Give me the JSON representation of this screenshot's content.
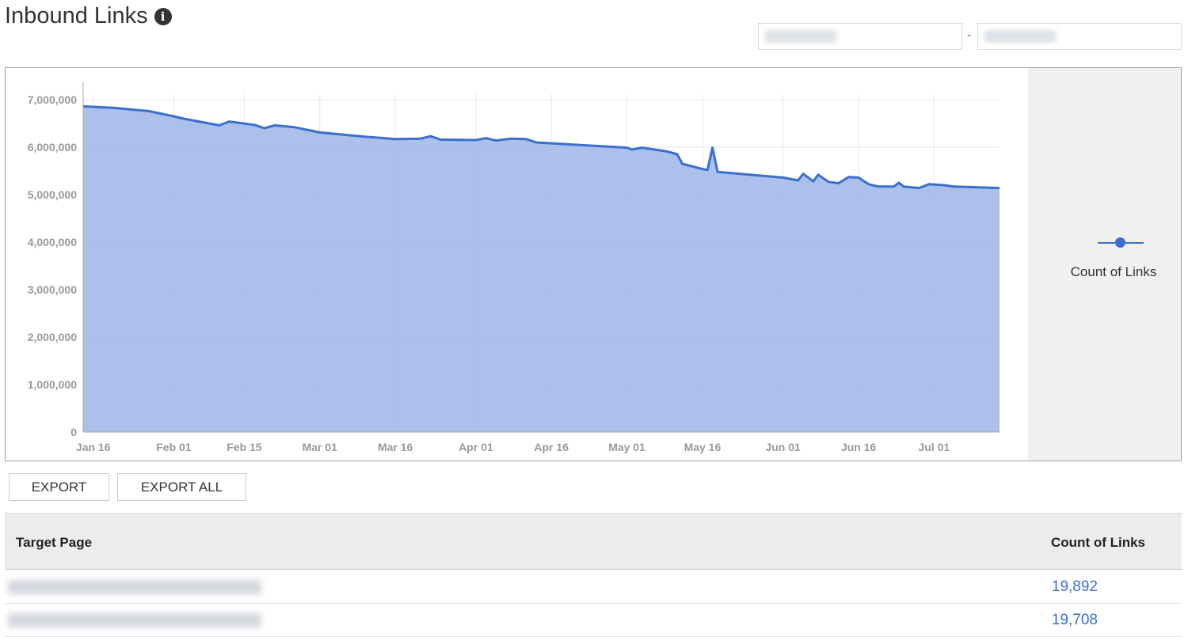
{
  "header": {
    "title": "Inbound Links",
    "info_icon": "info-circle-icon"
  },
  "date_range": {
    "separator": "-"
  },
  "chart_data": {
    "type": "area",
    "ylim": [
      0,
      7000000
    ],
    "yticks": [
      "0",
      "1,000,000",
      "2,000,000",
      "3,000,000",
      "4,000,000",
      "5,000,000",
      "6,000,000",
      "7,000,000"
    ],
    "xticks": [
      {
        "date": "2000-01-16",
        "label": "Jan 16"
      },
      {
        "date": "2000-02-01",
        "label": "Feb 01"
      },
      {
        "date": "2000-02-15",
        "label": "Feb 15"
      },
      {
        "date": "2000-03-01",
        "label": "Mar 01"
      },
      {
        "date": "2000-03-16",
        "label": "Mar 16"
      },
      {
        "date": "2000-04-01",
        "label": "Apr 01"
      },
      {
        "date": "2000-04-16",
        "label": "Apr 16"
      },
      {
        "date": "2000-05-01",
        "label": "May 01"
      },
      {
        "date": "2000-05-16",
        "label": "May 16"
      },
      {
        "date": "2000-06-01",
        "label": "Jun 01"
      },
      {
        "date": "2000-06-16",
        "label": "Jun 16"
      },
      {
        "date": "2000-07-01",
        "label": "Jul 01"
      }
    ],
    "xrange": [
      "2000-01-14",
      "2000-07-14"
    ],
    "grid": true,
    "legend_placement": "right",
    "series": [
      {
        "name": "Count of Links",
        "color": "#3a6fd0",
        "fill": "#a6bde9",
        "points": [
          [
            "2000-01-14",
            6860000
          ],
          [
            "2000-01-20",
            6830000
          ],
          [
            "2000-01-27",
            6760000
          ],
          [
            "2000-02-01",
            6650000
          ],
          [
            "2000-02-03",
            6600000
          ],
          [
            "2000-02-08",
            6500000
          ],
          [
            "2000-02-10",
            6460000
          ],
          [
            "2000-02-12",
            6540000
          ],
          [
            "2000-02-17",
            6470000
          ],
          [
            "2000-02-19",
            6400000
          ],
          [
            "2000-02-21",
            6460000
          ],
          [
            "2000-02-25",
            6420000
          ],
          [
            "2000-03-01",
            6310000
          ],
          [
            "2000-03-10",
            6220000
          ],
          [
            "2000-03-16",
            6170000
          ],
          [
            "2000-03-21",
            6180000
          ],
          [
            "2000-03-23",
            6230000
          ],
          [
            "2000-03-25",
            6160000
          ],
          [
            "2000-04-01",
            6150000
          ],
          [
            "2000-04-03",
            6190000
          ],
          [
            "2000-04-05",
            6140000
          ],
          [
            "2000-04-08",
            6180000
          ],
          [
            "2000-04-11",
            6170000
          ],
          [
            "2000-04-13",
            6100000
          ],
          [
            "2000-05-01",
            5990000
          ],
          [
            "2000-05-02",
            5950000
          ],
          [
            "2000-05-04",
            5990000
          ],
          [
            "2000-05-09",
            5910000
          ],
          [
            "2000-05-11",
            5850000
          ],
          [
            "2000-05-12",
            5650000
          ],
          [
            "2000-05-16",
            5540000
          ],
          [
            "2000-05-17",
            5520000
          ],
          [
            "2000-05-18",
            5990000
          ],
          [
            "2000-05-19",
            5480000
          ],
          [
            "2000-06-01",
            5360000
          ],
          [
            "2000-06-04",
            5300000
          ],
          [
            "2000-06-05",
            5440000
          ],
          [
            "2000-06-07",
            5280000
          ],
          [
            "2000-06-08",
            5420000
          ],
          [
            "2000-06-10",
            5270000
          ],
          [
            "2000-06-12",
            5240000
          ],
          [
            "2000-06-14",
            5370000
          ],
          [
            "2000-06-16",
            5360000
          ],
          [
            "2000-06-18",
            5220000
          ],
          [
            "2000-06-20",
            5170000
          ],
          [
            "2000-06-23",
            5170000
          ],
          [
            "2000-06-24",
            5250000
          ],
          [
            "2000-06-25",
            5170000
          ],
          [
            "2000-06-28",
            5140000
          ],
          [
            "2000-06-30",
            5220000
          ],
          [
            "2000-07-03",
            5200000
          ],
          [
            "2000-07-05",
            5170000
          ],
          [
            "2000-07-14",
            5140000
          ]
        ]
      }
    ]
  },
  "legend": {
    "label": "Count of Links"
  },
  "toolbar": {
    "export": "EXPORT",
    "export_all": "EXPORT ALL"
  },
  "table": {
    "columns": [
      "Target Page",
      "Count of Links"
    ],
    "rows": [
      {
        "count": "19,892"
      },
      {
        "count": "19,708"
      }
    ]
  }
}
